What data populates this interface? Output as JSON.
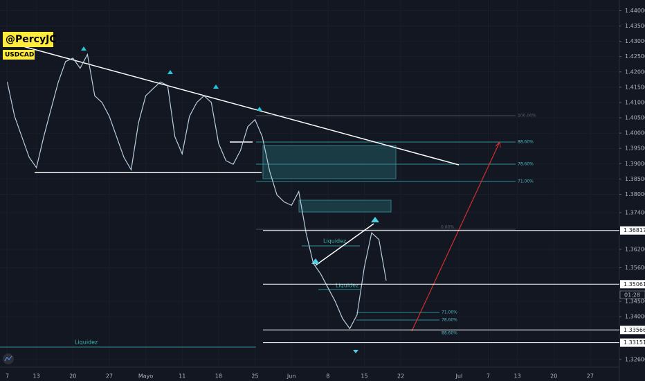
{
  "chart_data": {
    "type": "line",
    "symbol": "USDCAD",
    "author": "@PercyJC",
    "x": [
      0,
      1,
      2,
      3,
      4,
      5,
      6,
      7,
      8,
      9,
      10,
      11,
      12,
      13,
      14,
      15,
      16,
      17,
      18,
      19,
      20,
      21,
      22,
      23,
      24,
      25,
      26,
      27,
      28,
      29,
      30,
      31,
      32,
      33,
      34,
      35,
      36,
      37,
      38,
      39,
      40,
      41,
      42,
      43,
      44,
      45,
      46,
      47,
      48,
      49,
      50,
      51,
      52
    ],
    "series": [
      {
        "name": "USDCAD",
        "color": "#b9cfe0",
        "values": [
          1.4167,
          1.4055,
          1.3988,
          1.3921,
          1.3887,
          1.3988,
          1.4078,
          1.4167,
          1.4234,
          1.4245,
          1.4212,
          1.4257,
          1.4122,
          1.41,
          1.4055,
          1.3988,
          1.3921,
          1.388,
          1.4033,
          1.4122,
          1.4145,
          1.4167,
          1.4156,
          1.3988,
          1.3932,
          1.4055,
          1.41,
          1.4122,
          1.41,
          1.3966,
          1.391,
          1.3898,
          1.3943,
          1.4021,
          1.4044,
          1.3988,
          1.3876,
          1.3798,
          1.3775,
          1.3764,
          1.3809,
          1.3674,
          1.3574,
          1.354,
          1.3495,
          1.345,
          1.3394,
          1.3361,
          1.3406,
          1.3562,
          1.3674,
          1.3652,
          1.3518
        ]
      }
    ],
    "xlim": [
      -1,
      84
    ],
    "xticks": [
      {
        "value": 0,
        "label": "7"
      },
      {
        "value": 4,
        "label": "13"
      },
      {
        "value": 9,
        "label": "20"
      },
      {
        "value": 14,
        "label": "27"
      },
      {
        "value": 19,
        "label": "Mayo"
      },
      {
        "value": 24,
        "label": "11"
      },
      {
        "value": 29,
        "label": "18"
      },
      {
        "value": 34,
        "label": "25"
      },
      {
        "value": 39,
        "label": "Jun"
      },
      {
        "value": 44,
        "label": "8"
      },
      {
        "value": 49,
        "label": "15"
      },
      {
        "value": 54,
        "label": "22"
      },
      {
        "value": 62,
        "label": "Jul"
      },
      {
        "value": 66,
        "label": "7"
      },
      {
        "value": 70,
        "label": "13"
      },
      {
        "value": 75,
        "label": "20"
      },
      {
        "value": 80,
        "label": "27"
      }
    ],
    "ylim": [
      1.3235,
      1.4435
    ],
    "yticks": [
      {
        "value": 1.44,
        "label": "1.44000"
      },
      {
        "value": 1.435,
        "label": "1.43500"
      },
      {
        "value": 1.43,
        "label": "1.43000"
      },
      {
        "value": 1.425,
        "label": "1.42500"
      },
      {
        "value": 1.42,
        "label": "1.42000"
      },
      {
        "value": 1.415,
        "label": "1.41500"
      },
      {
        "value": 1.41,
        "label": "1.41000"
      },
      {
        "value": 1.405,
        "label": "1.40500"
      },
      {
        "value": 1.4,
        "label": "1.40000"
      },
      {
        "value": 1.395,
        "label": "1.39500"
      },
      {
        "value": 1.39,
        "label": "1.39000"
      },
      {
        "value": 1.385,
        "label": "1.38500"
      },
      {
        "value": 1.38,
        "label": "1.38000"
      },
      {
        "value": 1.374,
        "label": "1.37400"
      },
      {
        "value": 1.362,
        "label": "1.36200"
      },
      {
        "value": 1.356,
        "label": "1.35600"
      },
      {
        "value": 1.345,
        "label": "1.34500"
      },
      {
        "value": 1.34,
        "label": "1.34000"
      },
      {
        "value": 1.326,
        "label": "1.32600"
      }
    ],
    "price_lines": [
      {
        "value": 1.36817,
        "label": "1.36817"
      },
      {
        "value": 1.35061,
        "label": "1.35061"
      },
      {
        "value": 1.33566,
        "label": "1.33566"
      },
      {
        "value": 1.33151,
        "label": "1.33151"
      }
    ],
    "countdown": "01:28",
    "annotations": [
      "Liquidez",
      "Liquidez",
      "Liquidez",
      "100.00%",
      "88.60%",
      "78.60%",
      "71.00%",
      "0.00%",
      "71.00%",
      "78.60%",
      "88.60%"
    ]
  }
}
